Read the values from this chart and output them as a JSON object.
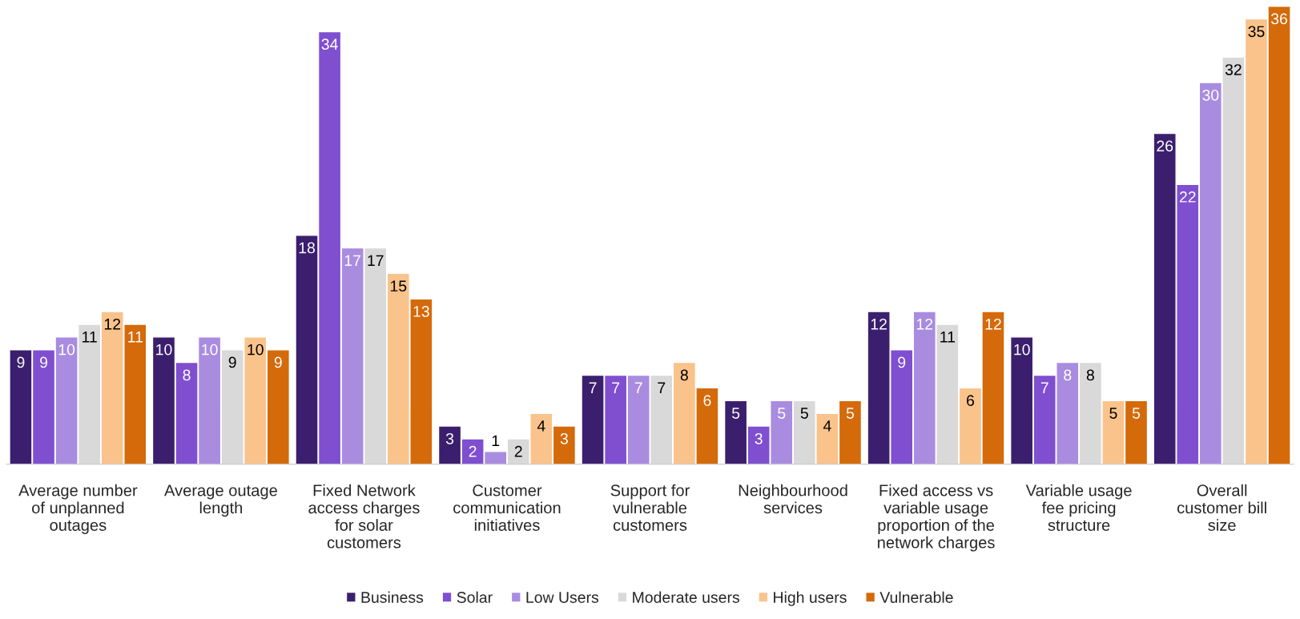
{
  "chart_data": {
    "type": "bar",
    "categories": [
      "Average number\nof unplanned\noutages",
      "Average outage\nlength",
      "Fixed Network\naccess charges\nfor solar\ncustomers",
      "Customer\ncommunication\ninitiatives",
      "Support for\nvulnerable\ncustomers",
      "Neighbourhood\nservices",
      "Fixed access vs\nvariable usage\nproportion of the\nnetwork charges",
      "Variable usage\nfee pricing\nstructure",
      "Overall\ncustomer bill\nsize"
    ],
    "series": [
      {
        "name": "Business",
        "color": "#3b1f6e",
        "values": [
          9,
          10,
          18,
          3,
          7,
          5,
          12,
          10,
          26
        ]
      },
      {
        "name": "Solar",
        "color": "#7f4fd0",
        "values": [
          9,
          8,
          34,
          2,
          7,
          3,
          9,
          7,
          22
        ]
      },
      {
        "name": "Low Users",
        "color": "#a98ce0",
        "values": [
          10,
          10,
          17,
          1,
          7,
          5,
          12,
          8,
          30
        ]
      },
      {
        "name": "Moderate users",
        "color": "#d9d9d9",
        "values": [
          11,
          9,
          17,
          2,
          7,
          5,
          11,
          8,
          32
        ]
      },
      {
        "name": "High users",
        "color": "#f9c38b",
        "values": [
          12,
          10,
          15,
          4,
          8,
          4,
          6,
          5,
          35
        ]
      },
      {
        "name": "Vulnerable",
        "color": "#d46a0a",
        "values": [
          11,
          9,
          13,
          3,
          6,
          5,
          12,
          5,
          36
        ]
      }
    ],
    "ylim": [
      0,
      36
    ],
    "data_labels": true,
    "legend": "bottom"
  }
}
